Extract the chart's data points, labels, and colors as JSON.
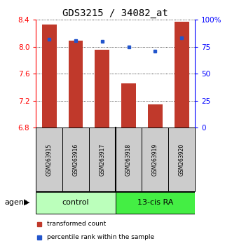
{
  "title": "GDS3215 / 34082_at",
  "samples": [
    "GSM263915",
    "GSM263916",
    "GSM263917",
    "GSM263918",
    "GSM263919",
    "GSM263920"
  ],
  "bar_values": [
    8.33,
    8.09,
    7.96,
    7.46,
    7.15,
    8.37
  ],
  "percentile_values": [
    82,
    81,
    80,
    75,
    71,
    83
  ],
  "ymin": 6.8,
  "ymax": 8.4,
  "yticks": [
    6.8,
    7.2,
    7.6,
    8.0,
    8.4
  ],
  "right_yticks": [
    0,
    25,
    50,
    75,
    100
  ],
  "right_yticklabels": [
    "0",
    "25",
    "50",
    "75",
    "100%"
  ],
  "bar_color": "#c0392b",
  "dot_color": "#2255cc",
  "control_label": "control",
  "treatment_label": "13-cis RA",
  "agent_label": "agent",
  "legend_bar_label": "transformed count",
  "legend_dot_label": "percentile rank within the sample",
  "control_color": "#bbffbb",
  "treatment_color": "#44ee44",
  "sample_box_color": "#cccccc",
  "fig_width": 3.31,
  "fig_height": 3.54,
  "dpi": 100
}
